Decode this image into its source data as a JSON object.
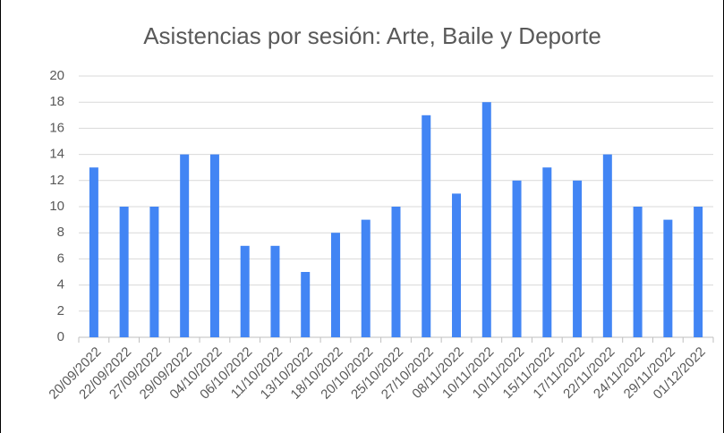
{
  "chart_data": {
    "type": "bar",
    "title": "Asistencias por sesión: Arte, Baile y Deporte",
    "categories": [
      "20/09/2022",
      "22/09/2022",
      "27/09/2022",
      "29/09/2022",
      "04/10/2022",
      "06/10/2022",
      "11/10/2022",
      "13/10/2022",
      "18/10/2022",
      "20/10/2022",
      "25/10/2022",
      "27/10/2022",
      "08/11/2022",
      "10/11/2022",
      "10/11/2022",
      "15/11/2022",
      "17/11/2022",
      "22/11/2022",
      "24/11/2022",
      "29/11/2022",
      "01/12/2022"
    ],
    "values": [
      13,
      10,
      10,
      14,
      14,
      7,
      7,
      5,
      8,
      9,
      10,
      17,
      11,
      18,
      12,
      13,
      12,
      14,
      10,
      9,
      10
    ],
    "color": "#4285f4",
    "ylim": [
      0,
      20
    ],
    "yticks": [
      0,
      2,
      4,
      6,
      8,
      10,
      12,
      14,
      16,
      18,
      20
    ],
    "grid": true
  }
}
